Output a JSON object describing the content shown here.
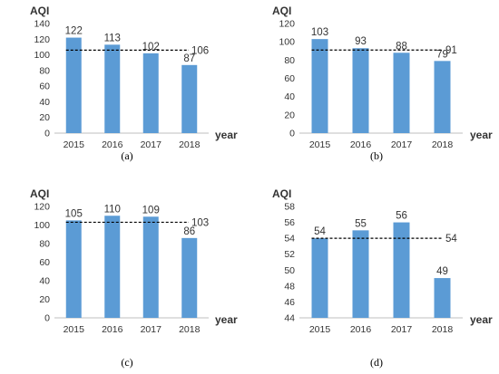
{
  "chart_data": [
    {
      "type": "bar",
      "caption": "(a)",
      "ylabel": "AQI",
      "xlabel": "year",
      "categories": [
        "2015",
        "2016",
        "2017",
        "2018"
      ],
      "values": [
        122,
        113,
        102,
        87
      ],
      "average": 106,
      "ylim": [
        0,
        140
      ],
      "yticks": [
        0,
        20,
        40,
        60,
        80,
        100,
        120,
        140
      ],
      "bar_color": "#5b9bd5"
    },
    {
      "type": "bar",
      "caption": "(b)",
      "ylabel": "AQI",
      "xlabel": "year",
      "categories": [
        "2015",
        "2016",
        "2017",
        "2018"
      ],
      "values": [
        103,
        93,
        88,
        79
      ],
      "average": 91,
      "ylim": [
        0,
        120
      ],
      "yticks": [
        0,
        20,
        40,
        60,
        80,
        100,
        120
      ],
      "bar_color": "#5b9bd5"
    },
    {
      "type": "bar",
      "caption": "(c)",
      "ylabel": "AQI",
      "xlabel": "year",
      "categories": [
        "2015",
        "2016",
        "2017",
        "2018"
      ],
      "values": [
        105,
        110,
        109,
        86
      ],
      "average": 103,
      "ylim": [
        0,
        120
      ],
      "yticks": [
        0,
        20,
        40,
        60,
        80,
        100,
        120
      ],
      "bar_color": "#5b9bd5"
    },
    {
      "type": "bar",
      "caption": "(d)",
      "ylabel": "AQI",
      "xlabel": "year",
      "categories": [
        "2015",
        "2016",
        "2017",
        "2018"
      ],
      "values": [
        54,
        55,
        56,
        49
      ],
      "average": 54,
      "ylim": [
        44,
        58
      ],
      "yticks": [
        44,
        46,
        48,
        50,
        52,
        54,
        56,
        58
      ],
      "bar_color": "#5b9bd5"
    }
  ]
}
